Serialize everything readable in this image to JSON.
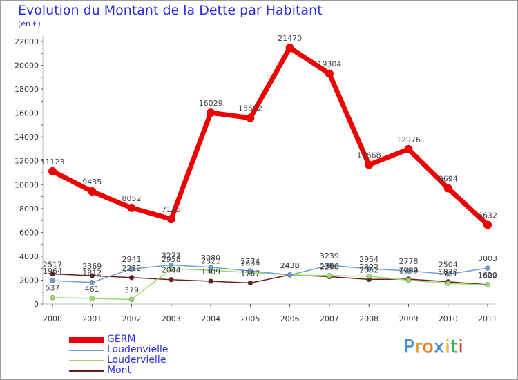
{
  "chart_data": {
    "type": "line",
    "title": "Evolution du Montant de la Dette par Habitant",
    "subtitle": "(en €)",
    "x": [
      "2000",
      "2001",
      "2002",
      "2003",
      "2004",
      "2005",
      "2006",
      "2007",
      "2008",
      "2009",
      "2010",
      "2011"
    ],
    "ylim": [
      0,
      22000
    ],
    "yticks": [
      "0",
      "2000",
      "4000",
      "6000",
      "8000",
      "10000",
      "12000",
      "14000",
      "16000",
      "18000",
      "20000",
      "22000"
    ],
    "grid": false,
    "legend_position": "bottom-left",
    "series": [
      {
        "name": "GERM",
        "color": "#ee0000",
        "values": [
          11123,
          9435,
          8052,
          7115,
          16029,
          15592,
          21470,
          19304,
          11668,
          12976,
          9694,
          6632
        ],
        "labels": [
          "11123",
          "9435",
          "8052",
          "7115",
          "16029",
          "15592",
          "21470",
          "19304",
          "11668",
          "12976",
          "9694",
          "6632"
        ]
      },
      {
        "name": "Loudenvielle",
        "color": "#6b9fd6",
        "values": [
          1964,
          1812,
          2941,
          3273,
          3080,
          2774,
          2433,
          3239,
          2954,
          2778,
          2504,
          3003
        ],
        "labels": [
          "1964",
          "1812",
          "2941",
          "3273",
          "3080",
          "2774",
          "2433",
          "3239",
          "2954",
          "2778",
          "2504",
          "3003"
        ]
      },
      {
        "name": "Loudervielle",
        "color": "#9ddc6a",
        "values": [
          537,
          461,
          379,
          2958,
          2821,
          2634,
          2436,
          2380,
          2322,
          1989,
          1731,
          1602
        ],
        "labels": [
          "537",
          "461",
          "379",
          "2958",
          "2821",
          "2634",
          "2436",
          "2380",
          "2322",
          "1989",
          "1731",
          "1602"
        ]
      },
      {
        "name": "Mont",
        "color": "#6b1e1e",
        "values": [
          2517,
          2369,
          2212,
          2044,
          1909,
          1767,
          2438,
          2290,
          2062,
          2084,
          1870,
          1620
        ],
        "labels": [
          "2517",
          "2369",
          "2212",
          "2044",
          "1909",
          "1767",
          "2438",
          "2290",
          "2062",
          "2084",
          "1870",
          "1620"
        ]
      }
    ]
  },
  "logo_text": [
    "P",
    "r",
    "o",
    "x",
    "i",
    "t",
    "i"
  ],
  "logo_colors": [
    "#3e8ee0",
    "#f19a1b",
    "#ef7a1a",
    "#3e8ee0",
    "#f0c21a",
    "#2bb54a",
    "#e23b3b"
  ]
}
